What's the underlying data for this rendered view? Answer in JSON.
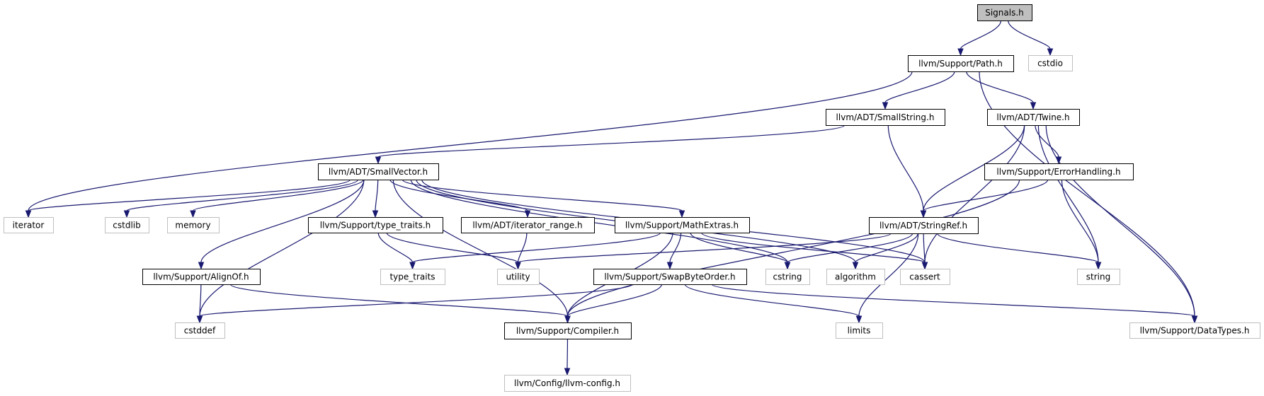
{
  "nodes": [
    {
      "id": "signals",
      "label": "Signals.h",
      "kind": "root"
    },
    {
      "id": "cstdio",
      "label": "cstdio",
      "kind": "ext"
    },
    {
      "id": "path",
      "label": "llvm/Support/Path.h",
      "kind": "doc"
    },
    {
      "id": "smallstring",
      "label": "llvm/ADT/SmallString.h",
      "kind": "doc"
    },
    {
      "id": "twine",
      "label": "llvm/ADT/Twine.h",
      "kind": "doc"
    },
    {
      "id": "smallvector",
      "label": "llvm/ADT/SmallVector.h",
      "kind": "doc"
    },
    {
      "id": "errorhandling",
      "label": "llvm/Support/ErrorHandling.h",
      "kind": "doc"
    },
    {
      "id": "iterator",
      "label": "iterator",
      "kind": "ext"
    },
    {
      "id": "cstdlib",
      "label": "cstdlib",
      "kind": "ext"
    },
    {
      "id": "memory",
      "label": "memory",
      "kind": "ext"
    },
    {
      "id": "typetraits_h",
      "label": "llvm/Support/type_traits.h",
      "kind": "doc"
    },
    {
      "id": "iterrange",
      "label": "llvm/ADT/iterator_range.h",
      "kind": "doc"
    },
    {
      "id": "mathextras",
      "label": "llvm/Support/MathExtras.h",
      "kind": "doc"
    },
    {
      "id": "stringref",
      "label": "llvm/ADT/StringRef.h",
      "kind": "doc"
    },
    {
      "id": "alignof",
      "label": "llvm/Support/AlignOf.h",
      "kind": "doc"
    },
    {
      "id": "type_traits",
      "label": "type_traits",
      "kind": "ext"
    },
    {
      "id": "utility",
      "label": "utility",
      "kind": "ext"
    },
    {
      "id": "swapbyte",
      "label": "llvm/Support/SwapByteOrder.h",
      "kind": "doc"
    },
    {
      "id": "cstring",
      "label": "cstring",
      "kind": "ext"
    },
    {
      "id": "algorithm",
      "label": "algorithm",
      "kind": "ext"
    },
    {
      "id": "cassert",
      "label": "cassert",
      "kind": "ext"
    },
    {
      "id": "string",
      "label": "string",
      "kind": "ext"
    },
    {
      "id": "cstddef",
      "label": "cstddef",
      "kind": "ext"
    },
    {
      "id": "compiler",
      "label": "llvm/Support/Compiler.h",
      "kind": "doc"
    },
    {
      "id": "limits",
      "label": "limits",
      "kind": "ext"
    },
    {
      "id": "datatypes",
      "label": "llvm/Support/DataTypes.h",
      "kind": "ext"
    },
    {
      "id": "llvmconfig",
      "label": "llvm/Config/llvm-config.h",
      "kind": "ext"
    }
  ],
  "edges": [
    [
      "signals",
      "path"
    ],
    [
      "signals",
      "cstdio"
    ],
    [
      "path",
      "smallstring"
    ],
    [
      "path",
      "twine"
    ],
    [
      "path",
      "iterator"
    ],
    [
      "path",
      "datatypes"
    ],
    [
      "smallstring",
      "smallvector"
    ],
    [
      "smallstring",
      "stringref"
    ],
    [
      "twine",
      "stringref"
    ],
    [
      "twine",
      "errorhandling"
    ],
    [
      "twine",
      "cassert"
    ],
    [
      "twine",
      "string"
    ],
    [
      "twine",
      "datatypes"
    ],
    [
      "errorhandling",
      "stringref"
    ],
    [
      "errorhandling",
      "compiler"
    ],
    [
      "errorhandling",
      "string"
    ],
    [
      "smallvector",
      "iterator"
    ],
    [
      "smallvector",
      "cstdlib"
    ],
    [
      "smallvector",
      "memory"
    ],
    [
      "smallvector",
      "typetraits_h"
    ],
    [
      "smallvector",
      "iterrange"
    ],
    [
      "smallvector",
      "mathextras"
    ],
    [
      "smallvector",
      "alignof"
    ],
    [
      "smallvector",
      "cstddef"
    ],
    [
      "smallvector",
      "compiler"
    ],
    [
      "smallvector",
      "cstring"
    ],
    [
      "smallvector",
      "algorithm"
    ],
    [
      "smallvector",
      "cassert"
    ],
    [
      "typetraits_h",
      "type_traits"
    ],
    [
      "typetraits_h",
      "utility"
    ],
    [
      "iterrange",
      "utility"
    ],
    [
      "mathextras",
      "type_traits"
    ],
    [
      "mathextras",
      "compiler"
    ],
    [
      "mathextras",
      "swapbyte"
    ],
    [
      "mathextras",
      "cstring"
    ],
    [
      "mathextras",
      "cassert"
    ],
    [
      "stringref",
      "utility"
    ],
    [
      "stringref",
      "cstring"
    ],
    [
      "stringref",
      "algorithm"
    ],
    [
      "stringref",
      "cassert"
    ],
    [
      "stringref",
      "string"
    ],
    [
      "stringref",
      "limits"
    ],
    [
      "alignof",
      "cstddef"
    ],
    [
      "alignof",
      "compiler"
    ],
    [
      "swapbyte",
      "cstddef"
    ],
    [
      "swapbyte",
      "compiler"
    ],
    [
      "swapbyte",
      "limits"
    ],
    [
      "swapbyte",
      "datatypes"
    ],
    [
      "compiler",
      "llvmconfig"
    ]
  ]
}
